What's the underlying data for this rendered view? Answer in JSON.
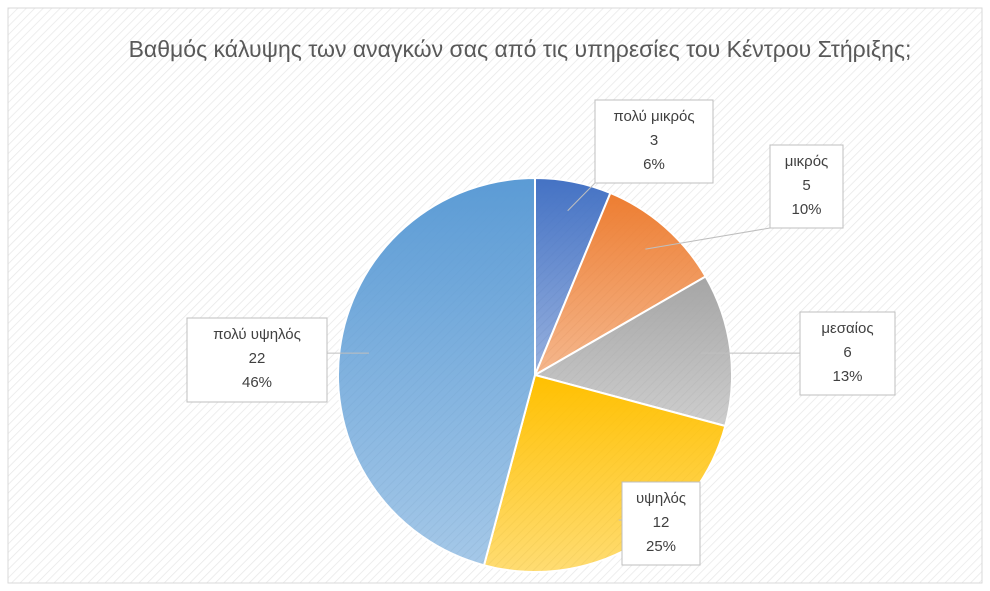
{
  "chart_data": {
    "type": "pie",
    "title": "Βαθμός κάλυψης των αναγκών σας από τις υπηρεσίες του Κέντρου Στήριξης;",
    "categories": [
      "πολύ μικρός",
      "μικρός",
      "μεσαίος",
      "υψηλός",
      "πολύ υψηλός"
    ],
    "values": [
      3,
      5,
      6,
      12,
      22
    ],
    "value_labels": [
      "6%",
      "10%",
      "13%",
      "25%",
      "46%"
    ],
    "colors": [
      "#4472c4",
      "#ed7d31",
      "#a5a5a5",
      "#ffc000",
      "#5b9bd5"
    ]
  }
}
